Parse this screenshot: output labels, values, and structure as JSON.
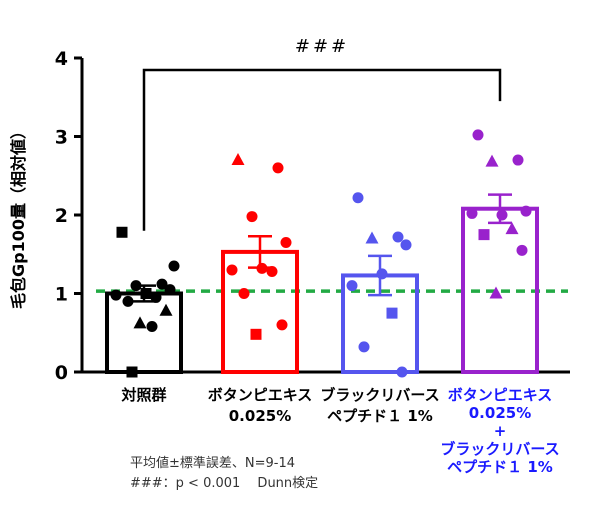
{
  "chart_data": {
    "type": "bar",
    "ylabel": "毛包Gp100量（相対値）",
    "ylim": [
      0,
      4
    ],
    "yticks": [
      "0",
      "1",
      "2",
      "3",
      "4"
    ],
    "reference_line": {
      "y": 1.03,
      "color": "#22aa44",
      "style": "dashed"
    },
    "categories": [
      {
        "lines": [
          "対照群"
        ],
        "color": "#000000"
      },
      {
        "lines": [
          "ボタンピエキス",
          "0.025%"
        ],
        "color": "#000000"
      },
      {
        "lines": [
          "ブラックリバース",
          "ペプチド１ 1%"
        ],
        "color": "#000000"
      },
      {
        "lines": [
          "ボタンピエキス",
          "0.025%",
          "+",
          "ブラックリバース",
          "ペプチド１  1%"
        ],
        "color": "#1a1aff"
      }
    ],
    "series": [
      {
        "color": "#000000",
        "mean": 1.0,
        "sem": 0.1,
        "points": [
          {
            "y": 1.78,
            "shape": "square"
          },
          {
            "y": 1.12,
            "shape": "circle"
          },
          {
            "y": 1.1,
            "shape": "circle"
          },
          {
            "y": 1.05,
            "shape": "circle"
          },
          {
            "y": 1.0,
            "shape": "square"
          },
          {
            "y": 0.98,
            "shape": "circle"
          },
          {
            "y": 0.95,
            "shape": "circle"
          },
          {
            "y": 0.9,
            "shape": "circle"
          },
          {
            "y": 0.78,
            "shape": "triangle"
          },
          {
            "y": 0.62,
            "shape": "triangle"
          },
          {
            "y": 0.58,
            "shape": "circle"
          },
          {
            "y": 0.0,
            "shape": "square"
          },
          {
            "y": 1.35,
            "shape": "circle"
          }
        ]
      },
      {
        "color": "#ff0000",
        "mean": 1.53,
        "sem": 0.2,
        "points": [
          {
            "y": 2.7,
            "shape": "triangle"
          },
          {
            "y": 2.6,
            "shape": "circle"
          },
          {
            "y": 1.98,
            "shape": "circle"
          },
          {
            "y": 1.65,
            "shape": "circle"
          },
          {
            "y": 1.32,
            "shape": "circle"
          },
          {
            "y": 1.3,
            "shape": "circle"
          },
          {
            "y": 1.28,
            "shape": "circle"
          },
          {
            "y": 1.0,
            "shape": "circle"
          },
          {
            "y": 0.6,
            "shape": "circle"
          },
          {
            "y": 0.48,
            "shape": "square"
          }
        ]
      },
      {
        "color": "#5555ee",
        "mean": 1.23,
        "sem": 0.25,
        "points": [
          {
            "y": 2.22,
            "shape": "circle"
          },
          {
            "y": 1.72,
            "shape": "circle"
          },
          {
            "y": 1.7,
            "shape": "triangle"
          },
          {
            "y": 1.62,
            "shape": "circle"
          },
          {
            "y": 1.25,
            "shape": "circle"
          },
          {
            "y": 1.1,
            "shape": "circle"
          },
          {
            "y": 0.75,
            "shape": "square"
          },
          {
            "y": 0.32,
            "shape": "circle"
          },
          {
            "y": 0.0,
            "shape": "circle"
          }
        ]
      },
      {
        "color": "#9922cc",
        "mean": 2.08,
        "sem": 0.18,
        "points": [
          {
            "y": 3.02,
            "shape": "circle"
          },
          {
            "y": 2.7,
            "shape": "circle"
          },
          {
            "y": 2.68,
            "shape": "triangle"
          },
          {
            "y": 2.05,
            "shape": "circle"
          },
          {
            "y": 2.0,
            "shape": "circle"
          },
          {
            "y": 2.02,
            "shape": "circle"
          },
          {
            "y": 1.82,
            "shape": "triangle"
          },
          {
            "y": 1.75,
            "shape": "square"
          },
          {
            "y": 1.55,
            "shape": "circle"
          },
          {
            "y": 1.0,
            "shape": "triangle"
          }
        ]
      }
    ],
    "significance": {
      "from": 0,
      "to": 3,
      "label": "###"
    }
  },
  "footnote": {
    "line1": "平均値±標準誤差、N=9-14",
    "line2": "###：p < 0.001　 Dunn検定"
  }
}
